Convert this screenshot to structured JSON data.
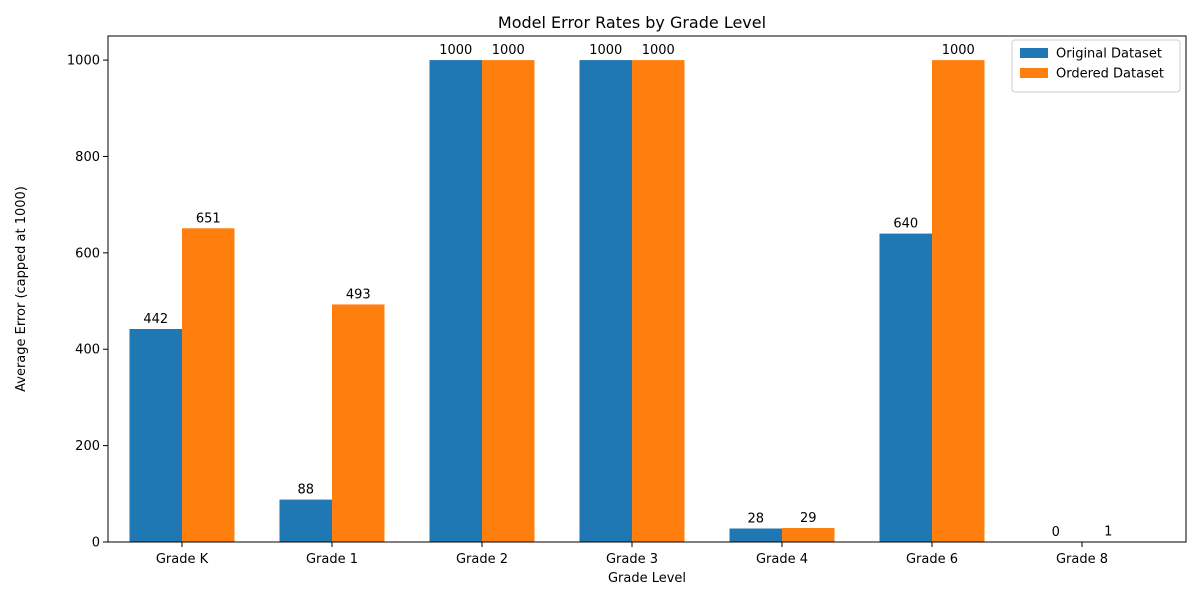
{
  "chart_data": {
    "type": "bar",
    "title": "Model Error Rates by Grade Level",
    "xlabel": "Grade Level",
    "ylabel": "Average Error (capped at 1000)",
    "categories": [
      "Grade K",
      "Grade 1",
      "Grade 2",
      "Grade 3",
      "Grade 4",
      "Grade 6",
      "Grade 8"
    ],
    "series": [
      {
        "name": "Original Dataset",
        "color": "#1f77b4",
        "values": [
          442,
          88,
          1000,
          1000,
          28,
          640,
          0
        ]
      },
      {
        "name": "Ordered Dataset",
        "color": "#ff7f0e",
        "values": [
          651,
          493,
          1000,
          1000,
          29,
          1000,
          1
        ]
      }
    ],
    "ylim": [
      0,
      1050
    ],
    "yticks": [
      0,
      200,
      400,
      600,
      800,
      1000
    ],
    "grid": false,
    "legend": "top-right",
    "data_labels": true
  }
}
